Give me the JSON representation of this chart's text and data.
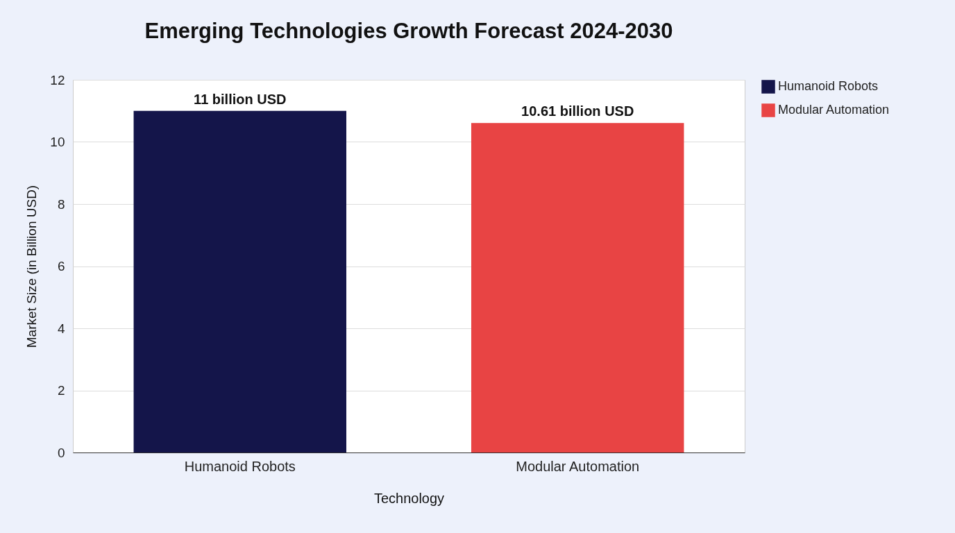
{
  "chart_data": {
    "type": "bar",
    "title": "Emerging Technologies Growth Forecast 2024-2030",
    "xlabel": "Technology",
    "ylabel": "Market Size (in Billion USD)",
    "categories": [
      "Humanoid Robots",
      "Modular Automation"
    ],
    "series": [
      {
        "name": "Humanoid Robots",
        "color": "#14154a",
        "values": [
          11,
          null
        ],
        "value_labels": [
          "11 billion USD",
          null
        ]
      },
      {
        "name": "Modular Automation",
        "color": "#e84444",
        "values": [
          null,
          10.61
        ],
        "value_labels": [
          null,
          "10.61 billion USD"
        ]
      }
    ],
    "ylim": [
      0,
      12
    ],
    "yticks": [
      0,
      2,
      4,
      6,
      8,
      10,
      12
    ],
    "grid": "y",
    "legend": "top right"
  }
}
